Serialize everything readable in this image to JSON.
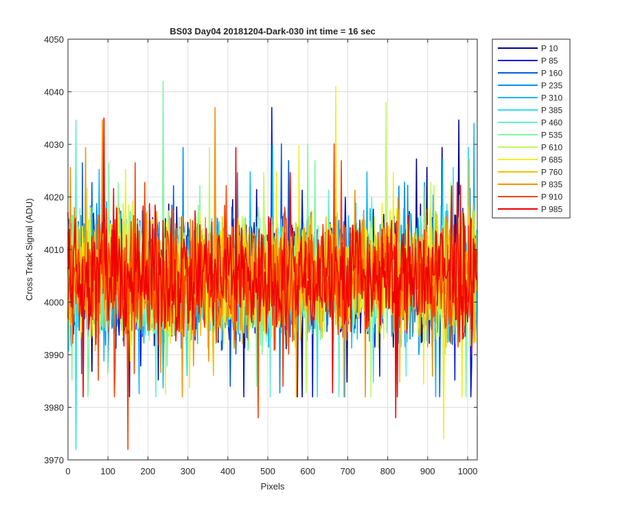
{
  "chart_data": {
    "type": "line",
    "title": "BS03 Day04 20181204-Dark-030 int time = 16 sec",
    "xlabel": "Pixels",
    "ylabel": "Cross Track Signal (ADU)",
    "xlim": [
      0,
      1024
    ],
    "ylim": [
      3970,
      4050
    ],
    "xticks": [
      "0",
      "100",
      "200",
      "300",
      "400",
      "500",
      "600",
      "700",
      "800",
      "900",
      "1000"
    ],
    "yticks": [
      "3970",
      "3980",
      "3990",
      "4000",
      "4010",
      "4020",
      "4030",
      "4040",
      "4050"
    ],
    "grid": true,
    "legend_position": "outside-top-right",
    "signal_summary": {
      "baseline": 4005,
      "typical_min": 3988,
      "typical_max": 4024,
      "global_min": 3972,
      "global_max": 4042
    },
    "series": [
      {
        "name": "P 10",
        "color": "#00008f"
      },
      {
        "name": "P 85",
        "color": "#0010e0"
      },
      {
        "name": "P 160",
        "color": "#005ee0"
      },
      {
        "name": "P 235",
        "color": "#0090f0"
      },
      {
        "name": "P 310",
        "color": "#10b8f8"
      },
      {
        "name": "P 385",
        "color": "#30e0f0"
      },
      {
        "name": "P 460",
        "color": "#60f0d0"
      },
      {
        "name": "P 535",
        "color": "#80f8a0"
      },
      {
        "name": "P 610",
        "color": "#c0f860"
      },
      {
        "name": "P 685",
        "color": "#f0f020"
      },
      {
        "name": "P 760",
        "color": "#f8c000"
      },
      {
        "name": "P 835",
        "color": "#f89000"
      },
      {
        "name": "P 910",
        "color": "#f84000"
      },
      {
        "name": "P 985",
        "color": "#f00000"
      }
    ],
    "spikes": [
      {
        "series": 12,
        "x": 150,
        "y": 3972
      },
      {
        "series": 5,
        "x": 20,
        "y": 3972
      },
      {
        "series": 7,
        "x": 238,
        "y": 4042
      },
      {
        "series": 9,
        "x": 670,
        "y": 4041
      },
      {
        "series": 13,
        "x": 90,
        "y": 4035
      },
      {
        "series": 11,
        "x": 368,
        "y": 4037
      },
      {
        "series": 1,
        "x": 510,
        "y": 4037
      },
      {
        "series": 8,
        "x": 795,
        "y": 4038
      },
      {
        "series": 12,
        "x": 475,
        "y": 3978
      },
      {
        "series": 13,
        "x": 820,
        "y": 3978
      },
      {
        "series": 9,
        "x": 940,
        "y": 3974
      },
      {
        "series": 4,
        "x": 1015,
        "y": 4034
      }
    ]
  }
}
